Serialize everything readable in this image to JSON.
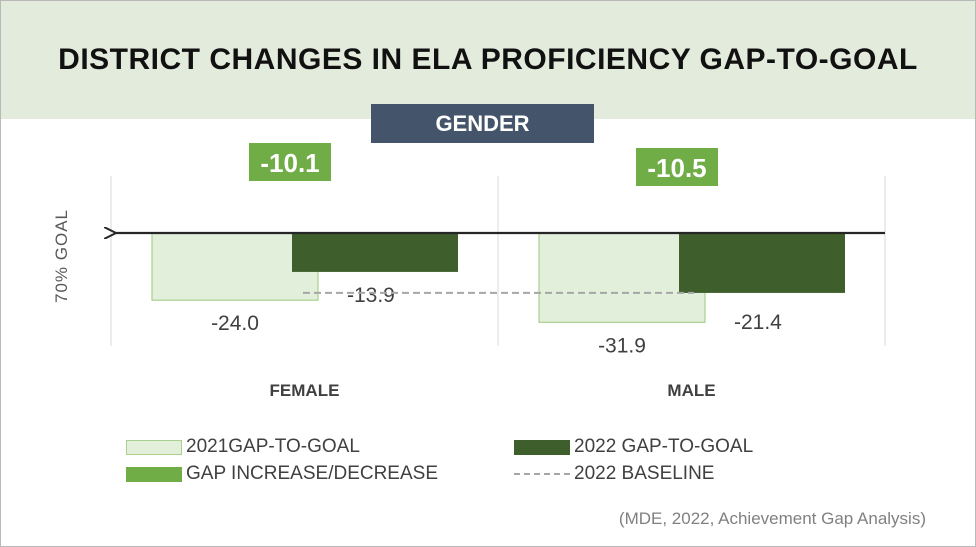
{
  "title": "DISTRICT CHANGES IN ELA PROFICIENCY GAP-TO-GOAL",
  "subtitle": "GENDER",
  "source": "(MDE, 2022, Achievement Gap Analysis)",
  "colors": {
    "bar_2021_fill": "#e2efda",
    "bar_2021_border": "#a9d08e",
    "bar_2022": "#3e5f2c",
    "change_badge": "#70ad47",
    "header_band": "#e2ebdc",
    "subtitle_bg": "#44546a",
    "baseline": "#a6a6a6"
  },
  "chart_data": {
    "type": "bar",
    "title": "DISTRICT CHANGES IN ELA PROFICIENCY GAP-TO-GOAL",
    "subtitle": "GENDER",
    "ylabel": "70% GOAL",
    "xlabel": "",
    "categories": [
      "FEMALE",
      "MALE"
    ],
    "series": [
      {
        "name": "2021GAP-TO-GOAL",
        "values": [
          -24.0,
          -31.9
        ],
        "labels": [
          "-24.0",
          "-31.9"
        ]
      },
      {
        "name": "2022 GAP-TO-GOAL",
        "values": [
          -13.9,
          -21.4
        ],
        "labels": [
          "-13.9",
          "-21.4"
        ]
      }
    ],
    "changes": {
      "name": "GAP INCREASE/DECREASE",
      "values": [
        -10.1,
        -10.5
      ],
      "labels": [
        "-10.1",
        "-10.5"
      ]
    },
    "baseline": {
      "name": "2022 BASELINE",
      "value": -21.4
    },
    "ylim": [
      -40,
      0
    ],
    "legend": [
      "2021GAP-TO-GOAL",
      "2022 GAP-TO-GOAL",
      "GAP INCREASE/DECREASE",
      "2022 BASELINE"
    ],
    "legend_position": "bottom",
    "grid": false
  }
}
